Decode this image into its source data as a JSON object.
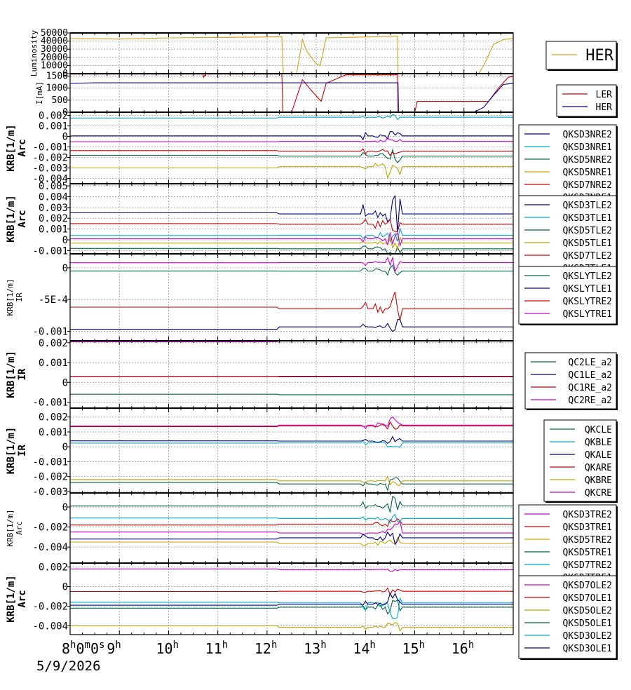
{
  "chart_data": {
    "type": "line",
    "x_axis": {
      "ticks": [
        {
          "label": "8",
          "sup": "h",
          "label2": "0",
          "sup2": "m",
          "label3": "0",
          "sup3": "s"
        },
        {
          "label": "9",
          "sup": "h"
        },
        {
          "label": "10",
          "sup": "h"
        },
        {
          "label": "11",
          "sup": "h"
        },
        {
          "label": "12",
          "sup": "h"
        },
        {
          "label": "13",
          "sup": "h"
        },
        {
          "label": "14",
          "sup": "h"
        },
        {
          "label": "15",
          "sup": "h"
        },
        {
          "label": "16",
          "sup": "h"
        }
      ],
      "range_hours": [
        8,
        17
      ],
      "date": "5/9/2026"
    },
    "panels": [
      {
        "ylabel": "Luminosity",
        "ylabel_small": true,
        "ylim": [
          0,
          50000
        ],
        "yticks": [
          "50000",
          "40000",
          "30000",
          "20000",
          "10000",
          "0"
        ],
        "ytick_values": [
          50000,
          40000,
          30000,
          20000,
          10000,
          0
        ],
        "legend_large": true,
        "series": [
          {
            "name": "HER",
            "color": "#d4a017",
            "points": [
              [
                8,
                43000
              ],
              [
                9,
                42500
              ],
              [
                10,
                44000
              ],
              [
                11,
                44500
              ],
              [
                12,
                45000
              ],
              [
                12.3,
                45500
              ],
              [
                12.33,
                0
              ],
              [
                12.6,
                0
              ],
              [
                12.72,
                42000
              ],
              [
                12.8,
                28000
              ],
              [
                13,
                12000
              ],
              [
                13.08,
                10000
              ],
              [
                13.2,
                44000
              ],
              [
                14,
                45000
              ],
              [
                14.6,
                46000
              ],
              [
                14.65,
                46000
              ],
              [
                14.66,
                0
              ],
              [
                16.3,
                0
              ],
              [
                16.4,
                10000
              ],
              [
                16.6,
                36000
              ],
              [
                16.8,
                42000
              ],
              [
                17,
                43000
              ]
            ]
          }
        ]
      },
      {
        "ylabel": "I[mA]",
        "ylabel_small": true,
        "ylim": [
          0,
          1600
        ],
        "yticks": [
          "1500",
          "1000",
          "500",
          "0"
        ],
        "ytick_values": [
          1500,
          1000,
          500,
          0
        ],
        "series": [
          {
            "name": "LER",
            "color": "#cc0000",
            "points": [
              [
                8,
                1580
              ],
              [
                10.7,
                1580
              ],
              [
                10.71,
                1450
              ],
              [
                10.75,
                1580
              ],
              [
                12.3,
                1580
              ],
              [
                12.32,
                0
              ],
              [
                12.5,
                0
              ],
              [
                12.72,
                1350
              ],
              [
                12.9,
                900
              ],
              [
                13.1,
                450
              ],
              [
                13.2,
                1200
              ],
              [
                13.6,
                1550
              ],
              [
                14.6,
                1550
              ],
              [
                14.65,
                1550
              ],
              [
                14.66,
                0
              ],
              [
                15,
                0
              ],
              [
                15.05,
                450
              ],
              [
                16,
                450
              ],
              [
                16.5,
                450
              ],
              [
                16.7,
                1000
              ],
              [
                16.9,
                1450
              ],
              [
                17,
                1480
              ]
            ]
          },
          {
            "name": "HER",
            "color": "#0000aa",
            "points": [
              [
                8,
                1200
              ],
              [
                8.5,
                1220
              ],
              [
                9,
                1220
              ],
              [
                14.6,
                1220
              ],
              [
                14.66,
                1220
              ],
              [
                14.67,
                0
              ],
              [
                16.2,
                0
              ],
              [
                16.4,
                200
              ],
              [
                16.6,
                700
              ],
              [
                16.8,
                1150
              ],
              [
                17,
                1200
              ]
            ]
          }
        ]
      },
      {
        "ylabel": "KRB[1/m]",
        "ylabel2": "Arc",
        "ylim": [
          -0.0045,
          0.0023
        ],
        "yticks": [
          "0.002",
          "0.001",
          "0",
          "-0.001",
          "-0.002",
          "-0.003",
          "-0.004"
        ],
        "ytick_values": [
          0.002,
          0.001,
          0,
          -0.001,
          -0.002,
          -0.003,
          -0.004
        ],
        "series": [
          {
            "name": "QKSD3NRE2",
            "color": "#000080",
            "y": 5e-05,
            "spike": 0.0008
          },
          {
            "name": "QKSD3NRE1",
            "color": "#00aacc",
            "y": 0.00175,
            "spike": 0.0003
          },
          {
            "name": "QKSD5NRE2",
            "color": "#006644",
            "y": -0.0018,
            "spike": 0.0009
          },
          {
            "name": "QKSD5NRE1",
            "color": "#c8a000",
            "y": -0.003,
            "spike": 0.0012
          },
          {
            "name": "QKSD7NRE2",
            "color": "#cc0000",
            "y": -0.00135,
            "spike": 0.0006
          },
          {
            "name": "QKSD7NRE1",
            "color": "#cc00cc",
            "y": -0.0005,
            "spike": 0.0005
          }
        ]
      },
      {
        "ylabel": "KRB[1/m]",
        "ylabel2": "Arc",
        "ylim": [
          -0.0013,
          0.0052
        ],
        "yticks": [
          "0.005",
          "0.004",
          "0.003",
          "0.002",
          "0.001",
          "0",
          "-0.001"
        ],
        "ytick_values": [
          0.005,
          0.004,
          0.003,
          0.002,
          0.001,
          0,
          -0.001
        ],
        "series": [
          {
            "name": "QKSD3TLE2",
            "color": "#000080",
            "y": 0.0025,
            "spike": 0.0022
          },
          {
            "name": "QKSD3TLE1",
            "color": "#00aacc",
            "y": 0.0004,
            "spike": 0.0008
          },
          {
            "name": "QKSD5TLE2",
            "color": "#006644",
            "y": -0.0008,
            "spike": 0.0007
          },
          {
            "name": "QKSD5TLE1",
            "color": "#c8a000",
            "y": -0.0003,
            "spike": 0.0006
          },
          {
            "name": "QKSD7TLE2",
            "color": "#cc0000",
            "y": 0.0015,
            "spike": 0.0012
          },
          {
            "name": "QKSD7TLE1",
            "color": "#cc00cc",
            "y": 0.0001,
            "spike": 0.0007
          }
        ]
      },
      {
        "ylabel": "KRB[1/m]",
        "ylabel2": "IR",
        "ylabel_small": true,
        "ylim": [
          -0.00115,
          0.00022
        ],
        "yticks": [
          "0",
          "-5E-4",
          "-0.001"
        ],
        "ytick_values": [
          0,
          -0.0005,
          -0.001
        ],
        "series": [
          {
            "name": "QKSLYTLE2",
            "color": "#006644",
            "y": -5e-05,
            "spike": 0.00012
          },
          {
            "name": "QKSLYTLE1",
            "color": "#000080",
            "y": -0.00097,
            "spike": 0.00012
          },
          {
            "name": "QKSLYTRE2",
            "color": "#cc0000",
            "y": -0.00062,
            "spike": 0.0003
          },
          {
            "name": "QKSLYTRE1",
            "color": "#cc00cc",
            "y": 8e-05,
            "spike": 0.00015
          }
        ]
      },
      {
        "ylabel": "KRB[1/m]",
        "ylabel2": "IR",
        "ylim": [
          -0.0013,
          0.0021
        ],
        "yticks": [
          "0.002",
          "0.001",
          "0",
          "-0.001"
        ],
        "ytick_values": [
          0.002,
          0.001,
          0,
          -0.001
        ],
        "series": [
          {
            "name": "QC2LE_a2",
            "color": "#006644",
            "y": -0.0006,
            "spike": 0
          },
          {
            "name": "QC1LE_a2",
            "color": "#000080",
            "y": 0.0003,
            "spike": 0
          },
          {
            "name": "QC1RE_a2",
            "color": "#cc0000",
            "y": 0.0003,
            "spike": 0
          },
          {
            "name": "QC2RE_a2",
            "color": "#cc00cc",
            "y": 0.00205,
            "spike": 0
          }
        ]
      },
      {
        "ylabel": "KRB[1/m]",
        "ylabel2": "IR",
        "ylim": [
          -0.0031,
          0.0026
        ],
        "yticks": [
          "0.002",
          "0.001",
          "0",
          "-0.001",
          "-0.002",
          "-0.003"
        ],
        "ytick_values": [
          0.002,
          0.001,
          0,
          -0.001,
          -0.002,
          -0.003
        ],
        "series": [
          {
            "name": "QKCLE",
            "color": "#006644",
            "y": -0.0024,
            "spike": 0.0005
          },
          {
            "name": "QKBLE",
            "color": "#00aacc",
            "y": 0.00025,
            "spike": 0.0003
          },
          {
            "name": "QKALE",
            "color": "#000080",
            "y": 0.0004,
            "spike": 0.0003
          },
          {
            "name": "QKARE",
            "color": "#cc0000",
            "y": 0.00135,
            "spike": 0.0003
          },
          {
            "name": "QKBRE",
            "color": "#c8a000",
            "y": -0.0022,
            "spike": 0.0003
          },
          {
            "name": "QKCRE",
            "color": "#cc00cc",
            "y": 0.0014,
            "spike": 0.0006
          }
        ]
      },
      {
        "ylabel": "KRB[1/m]",
        "ylabel2": "Arc",
        "ylabel_small": true,
        "ylim": [
          -0.0056,
          0.0014
        ],
        "yticks": [
          "0",
          "-0.002",
          "-0.004"
        ],
        "ytick_values": [
          0,
          -0.002,
          -0.004
        ],
        "series": [
          {
            "name": "QKSD3TRE2",
            "color": "#cc00cc",
            "y": -0.0025,
            "spike": 0.0012
          },
          {
            "name": "QKSD3TRE1",
            "color": "#cc0000",
            "y": -0.0018,
            "spike": 0.0006
          },
          {
            "name": "QKSD5TRE2",
            "color": "#c8a000",
            "y": -0.0035,
            "spike": 0.0008
          },
          {
            "name": "QKSD5TRE1",
            "color": "#006644",
            "y": 0.0001,
            "spike": 0.0012
          },
          {
            "name": "QKSD7TRE2",
            "color": "#00aacc",
            "y": -0.0011,
            "spike": 0.0005
          },
          {
            "name": "QKSD7TRE1",
            "color": "#000080",
            "y": -0.0032,
            "spike": 0.0009
          }
        ]
      },
      {
        "ylabel": "KRB[1/m]",
        "ylabel2": "Arc",
        "ylim": [
          -0.0049,
          0.0024
        ],
        "yticks": [
          "0.002",
          "0",
          "-0.002",
          "-0.004"
        ],
        "ytick_values": [
          0.002,
          0,
          -0.002,
          -0.004
        ],
        "series": [
          {
            "name": "QKSD7OLE2",
            "color": "#cc00cc",
            "y": 0.0018,
            "spike": 0.0002
          },
          {
            "name": "QKSD7OLE1",
            "color": "#cc0000",
            "y": -0.0005,
            "spike": 0.0004
          },
          {
            "name": "QKSD5OLE2",
            "color": "#c8a000",
            "y": -0.004,
            "spike": 0.0006
          },
          {
            "name": "QKSD5OLE1",
            "color": "#006644",
            "y": -0.0022,
            "spike": 0.0008
          },
          {
            "name": "QKSD3OLE2",
            "color": "#00aacc",
            "y": -0.0016,
            "spike": 0.0018
          },
          {
            "name": "QKSD3OLE1",
            "color": "#000080",
            "y": -0.0019,
            "spike": 0.0012
          }
        ]
      }
    ]
  }
}
